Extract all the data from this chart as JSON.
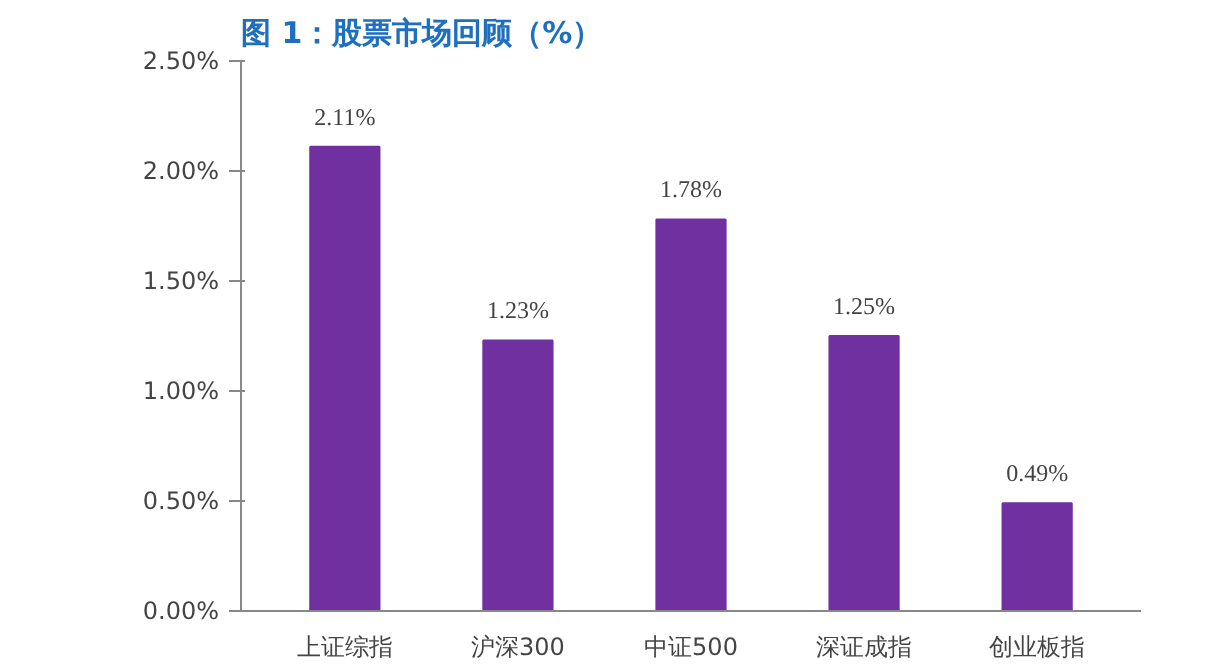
{
  "chart_data": {
    "type": "bar",
    "title": "图 1：股票市场回顾（%）",
    "categories": [
      "上证综指",
      "沪深300",
      "中证500",
      "深证成指",
      "创业板指"
    ],
    "values": [
      2.11,
      1.23,
      1.78,
      1.25,
      0.49
    ],
    "value_labels": [
      "2.11%",
      "1.23%",
      "1.78%",
      "1.25%",
      "0.49%"
    ],
    "color": "#7030a0",
    "ylim": [
      0,
      2.5
    ],
    "yticks": [
      {
        "value": 0,
        "label": "0.00%"
      },
      {
        "value": 0.5,
        "label": "0.50%"
      },
      {
        "value": 1,
        "label": "1.00%"
      },
      {
        "value": 1.5,
        "label": "1.50%"
      },
      {
        "value": 2,
        "label": "2.00%"
      },
      {
        "value": 2.5,
        "label": "2.50%"
      }
    ],
    "grid": false
  }
}
